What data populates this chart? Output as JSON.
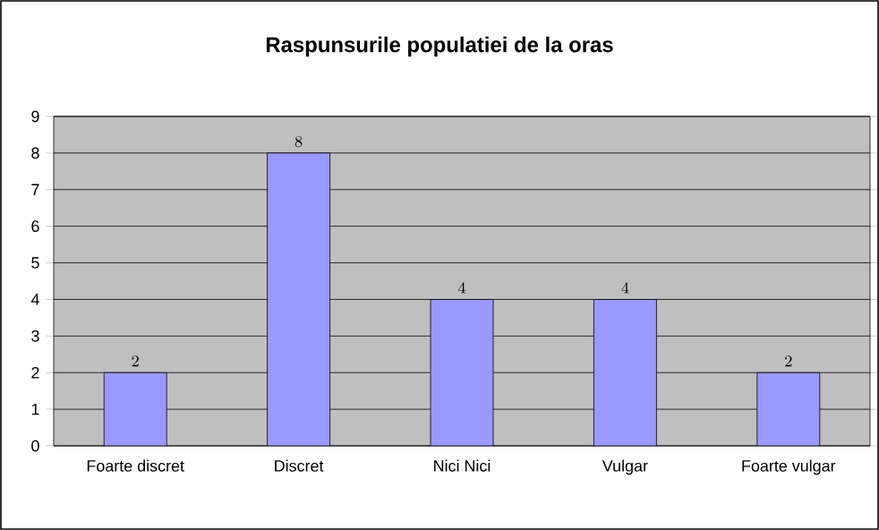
{
  "chart_data": {
    "type": "bar",
    "title": "Raspunsurile populatiei de la oras",
    "categories": [
      "Foarte discret",
      "Discret",
      "Nici Nici",
      "Vulgar",
      "Foarte vulgar"
    ],
    "values": [
      2,
      8,
      4,
      4,
      2
    ],
    "color": "#9999ff",
    "ylim": [
      0,
      9
    ],
    "yticks": [
      0,
      1,
      2,
      3,
      4,
      5,
      6,
      7,
      8,
      9
    ],
    "grid": "y",
    "data_labels": true
  }
}
